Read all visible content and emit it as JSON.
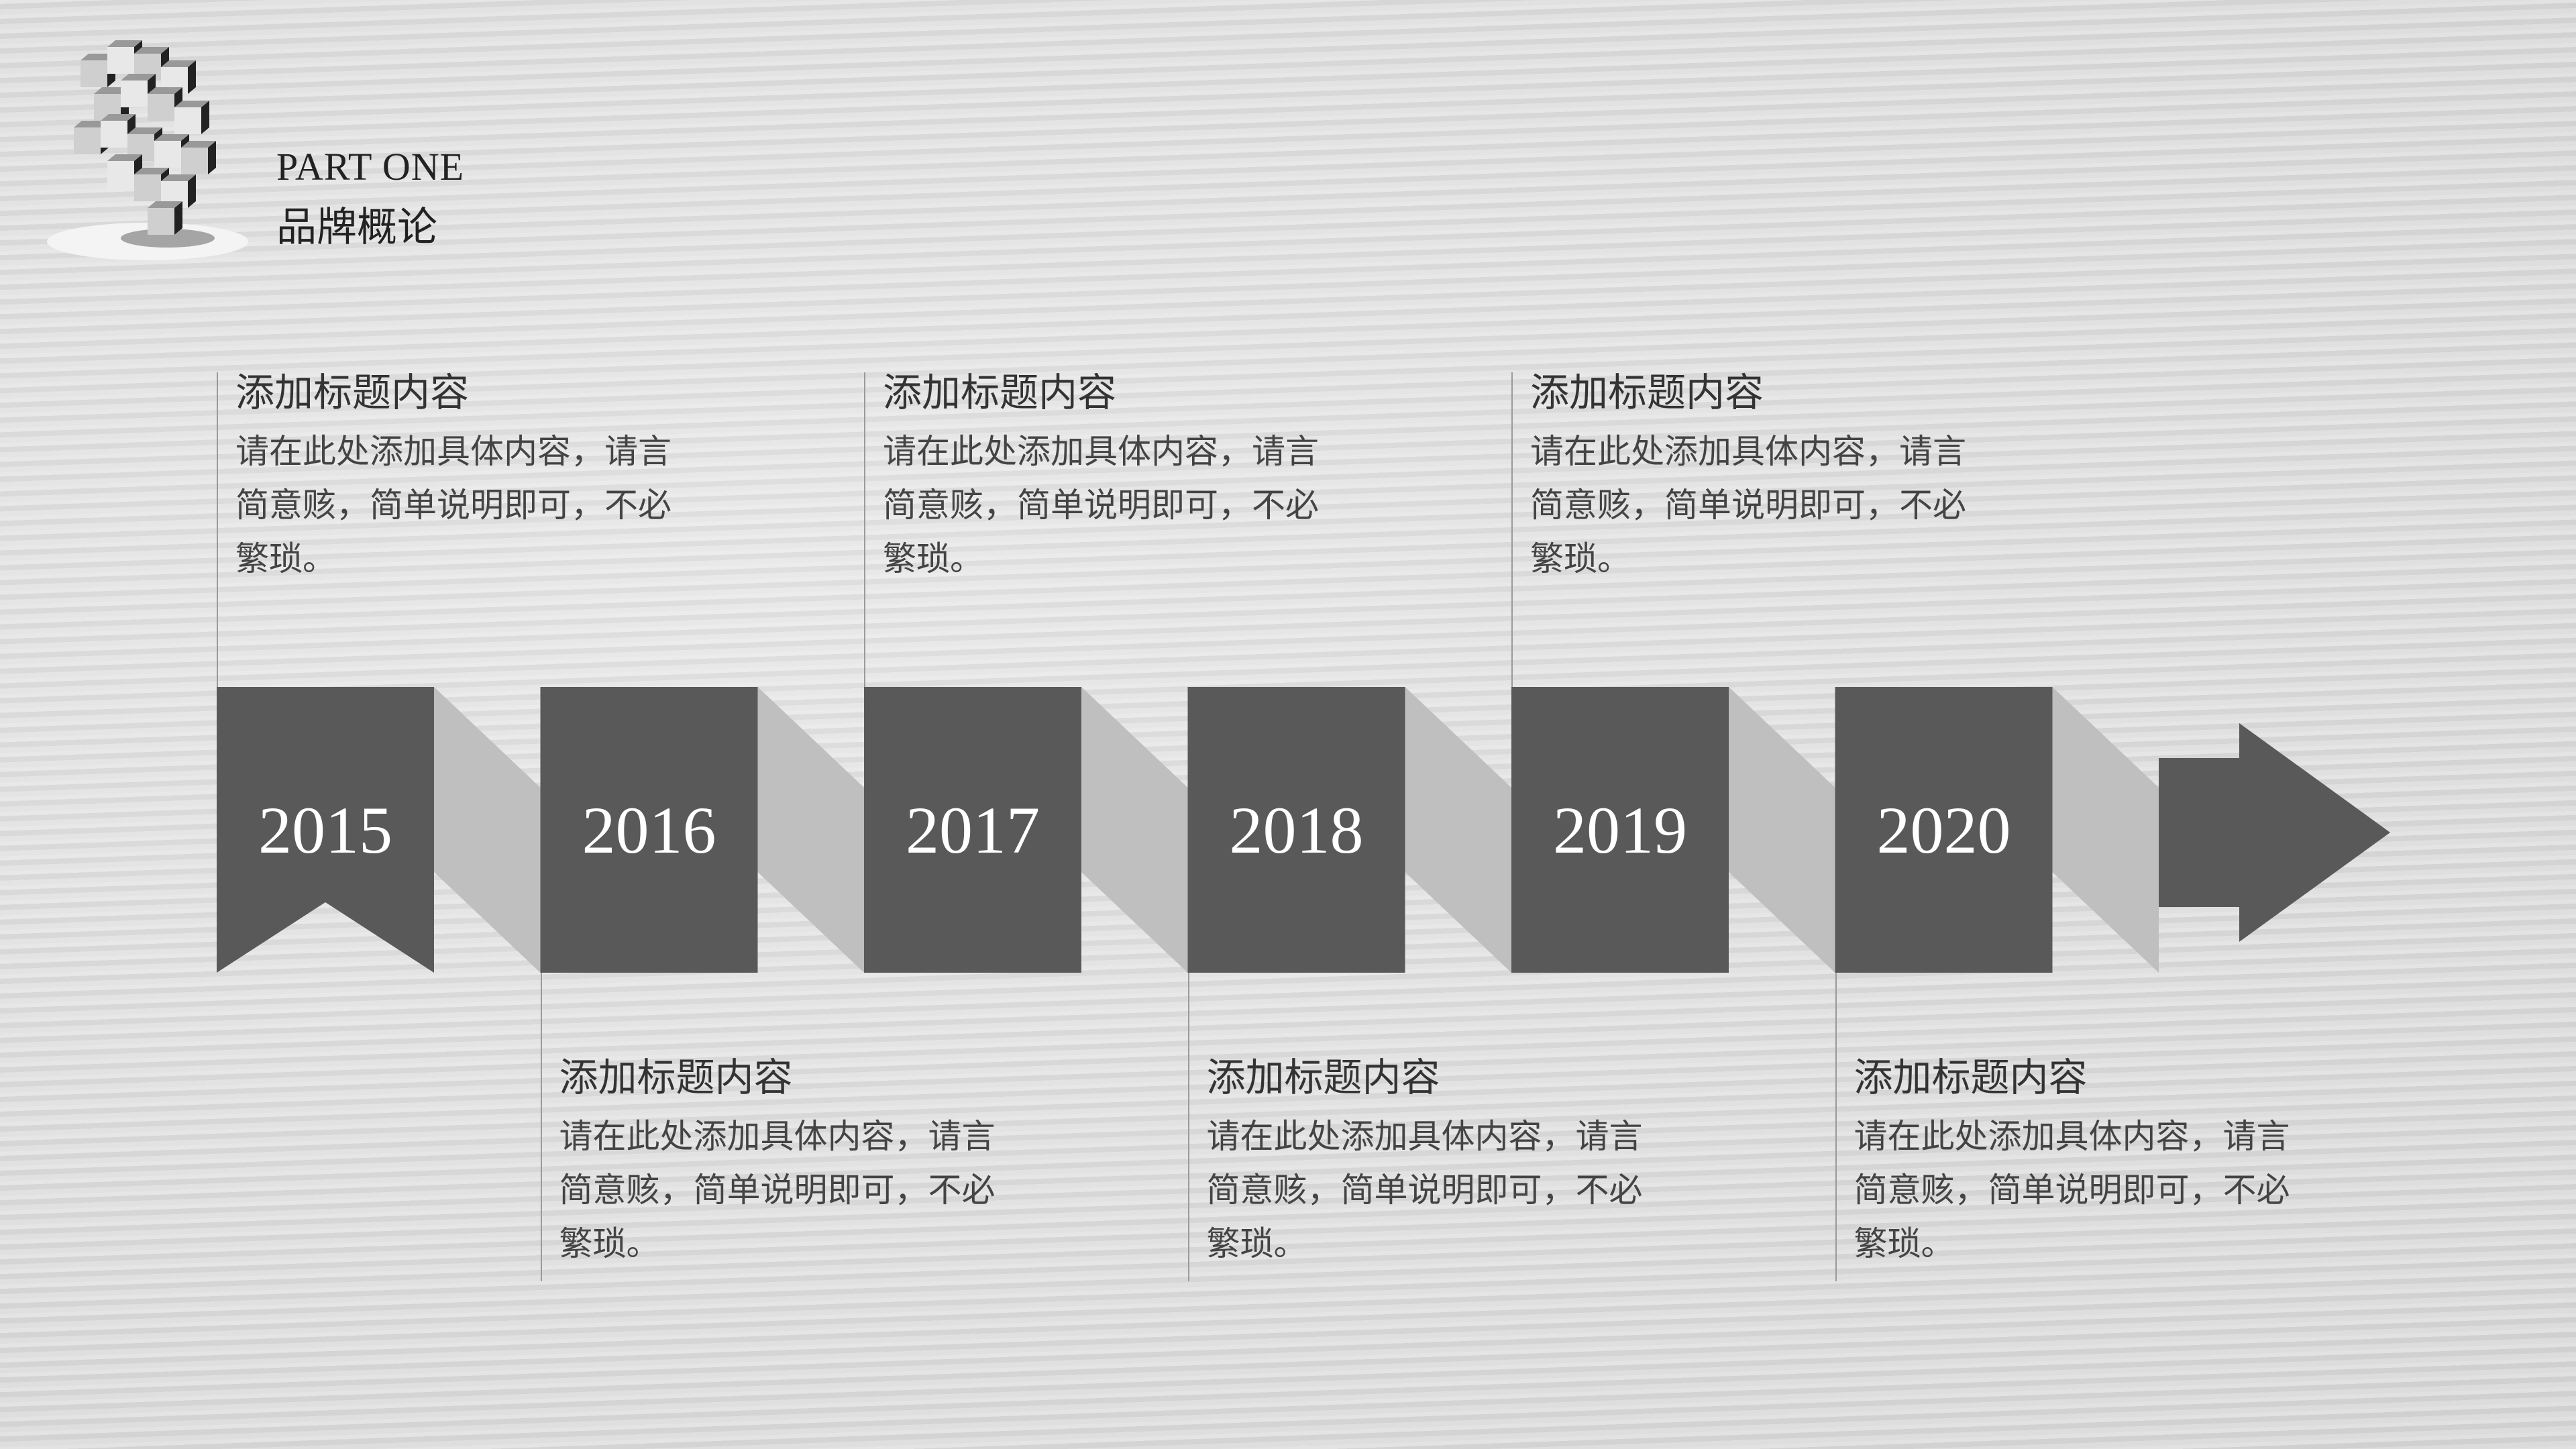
{
  "header": {
    "part_label": "PART ONE",
    "section_title": "品牌概论"
  },
  "colors": {
    "box": "#595959",
    "connector": "#bfbfbf",
    "background": "#dedede"
  },
  "timeline": [
    {
      "year": "2015",
      "position": "top",
      "title": "添加标题内容",
      "lines": [
        "请在此处添加具体内容，请言",
        "简意赅，简单说明即可，不必",
        "繁琐。"
      ]
    },
    {
      "year": "2016",
      "position": "bottom",
      "title": "添加标题内容",
      "lines": [
        "请在此处添加具体内容，请言",
        "简意赅，简单说明即可，不必",
        "繁琐。"
      ]
    },
    {
      "year": "2017",
      "position": "top",
      "title": "添加标题内容",
      "lines": [
        "请在此处添加具体内容，请言",
        "简意赅，简单说明即可，不必",
        "繁琐。"
      ]
    },
    {
      "year": "2018",
      "position": "bottom",
      "title": "添加标题内容",
      "lines": [
        "请在此处添加具体内容，请言",
        "简意赅，简单说明即可，不必",
        "繁琐。"
      ]
    },
    {
      "year": "2019",
      "position": "top",
      "title": "添加标题内容",
      "lines": [
        "请在此处添加具体内容，请言",
        "简意赅，简单说明即可，不必",
        "繁琐。"
      ]
    },
    {
      "year": "2020",
      "position": "bottom",
      "title": "添加标题内容",
      "lines": [
        "请在此处添加具体内容，请言",
        "简意赅，简单说明即可，不必",
        "繁琐。"
      ]
    }
  ]
}
